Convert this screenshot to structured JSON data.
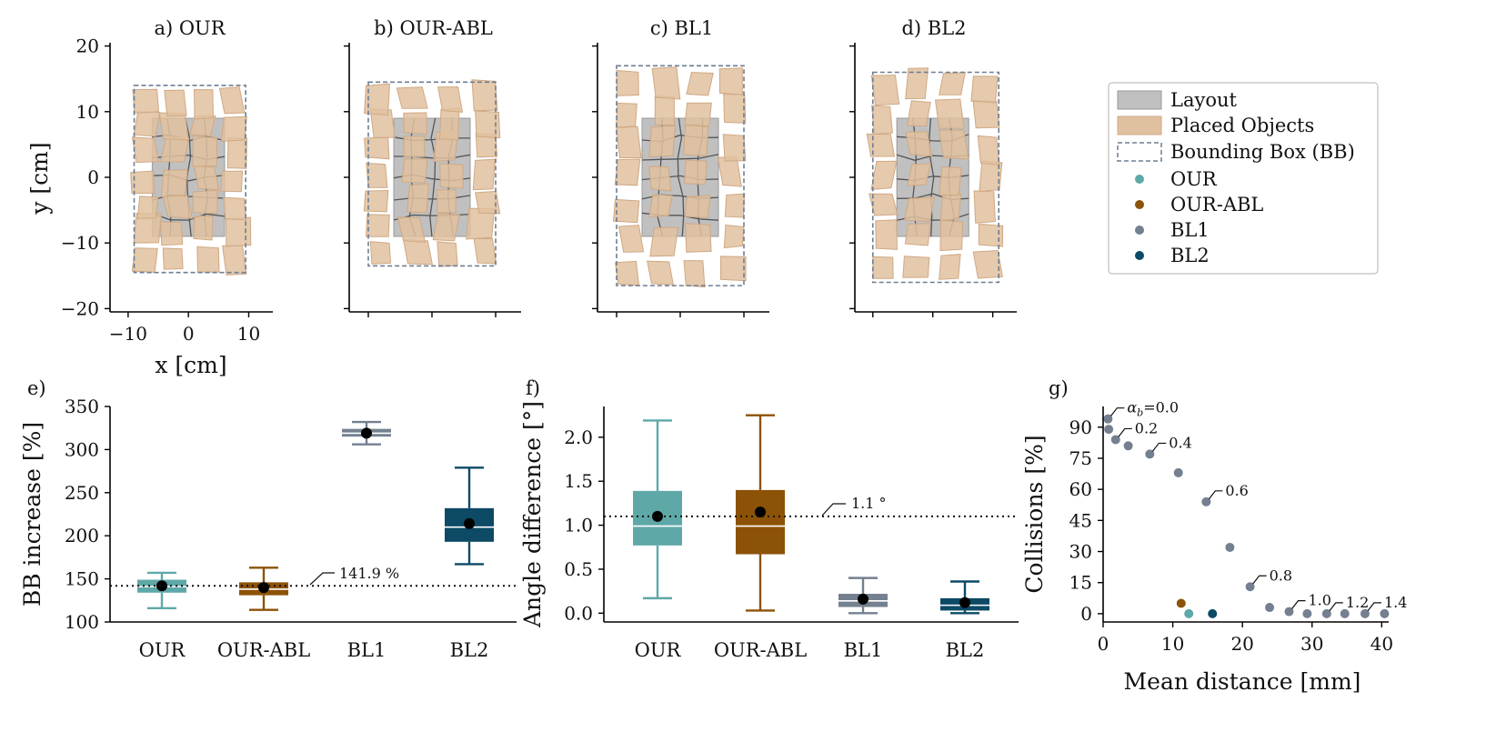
{
  "colors": {
    "OUR": "#5fa8a8",
    "OUR-ABL": "#8c5207",
    "BL1": "#748090",
    "BL2": "#0c4a66",
    "layout_fill": "#c0c0c0",
    "object_fill": "#e0c19f",
    "bb_stroke": "#6d7e93"
  },
  "legend": {
    "items": [
      "Layout",
      "Placed Objects",
      "Bounding Box (BB)",
      "OUR",
      "OUR-ABL",
      "BL1",
      "BL2"
    ]
  },
  "chart_data": [
    {
      "panel": "a",
      "type": "scatter",
      "title": "a) OUR",
      "xlabel": "x [cm]",
      "ylabel": "y [cm]",
      "xlim": [
        -13,
        14
      ],
      "ylim": [
        -20.5,
        20.5
      ],
      "xticks": [
        -10,
        0,
        10
      ],
      "yticks": [
        20,
        10,
        0,
        -10,
        -20
      ],
      "xtick_labels": [
        "−10",
        "0",
        "10"
      ],
      "ytick_labels": [
        "20",
        "10",
        "0",
        "−10",
        "−20"
      ],
      "layout_rect": [
        -6,
        6,
        -9,
        9
      ],
      "bounding_box": [
        -9,
        9.5,
        -14.5,
        14
      ]
    },
    {
      "panel": "b",
      "type": "scatter",
      "title": "b) OUR-ABL",
      "xlim": [
        -13,
        14
      ],
      "ylim": [
        -20.5,
        20.5
      ],
      "layout_rect": [
        -6,
        6,
        -9,
        9
      ],
      "bounding_box": [
        -10,
        10,
        -13.5,
        14.5
      ]
    },
    {
      "panel": "c",
      "type": "scatter",
      "title": "c) BL1",
      "xlim": [
        -13,
        14
      ],
      "ylim": [
        -20.5,
        20.5
      ],
      "layout_rect": [
        -6,
        6,
        -9,
        9
      ],
      "bounding_box": [
        -10,
        10,
        -16.5,
        17
      ]
    },
    {
      "panel": "d",
      "type": "scatter",
      "title": "d) BL2",
      "xlim": [
        -13,
        14
      ],
      "ylim": [
        -20.5,
        20.5
      ],
      "layout_rect": [
        -6,
        6,
        -9,
        9
      ],
      "bounding_box": [
        -10,
        11,
        -16,
        16
      ]
    },
    {
      "panel": "e",
      "type": "box",
      "label": "e)",
      "ylabel": "BB increase [%]",
      "ylim": [
        100,
        350
      ],
      "yticks": [
        100,
        150,
        200,
        250,
        300,
        350
      ],
      "categories": [
        "OUR",
        "OUR-ABL",
        "BL1",
        "BL2"
      ],
      "boxes": [
        {
          "name": "OUR",
          "whislo": 116,
          "q1": 134,
          "med": 141,
          "q3": 149,
          "whishi": 157,
          "mean": 141.9
        },
        {
          "name": "OUR-ABL",
          "whislo": 114,
          "q1": 131,
          "med": 138,
          "q3": 146,
          "whishi": 163,
          "mean": 140
        },
        {
          "name": "BL1",
          "whislo": 306,
          "q1": 315,
          "med": 319,
          "q3": 324,
          "whishi": 332,
          "mean": 319
        },
        {
          "name": "BL2",
          "whislo": 167,
          "q1": 193,
          "med": 210,
          "q3": 232,
          "whishi": 279,
          "mean": 214
        }
      ],
      "reference_line": 141.9,
      "reference_label": "141.9 %"
    },
    {
      "panel": "f",
      "type": "box",
      "label": "f)",
      "ylabel": "Angle difference [°]",
      "ylim": [
        -0.1,
        2.35
      ],
      "yticks": [
        0.0,
        0.5,
        1.0,
        1.5,
        2.0
      ],
      "ytick_labels": [
        "0.0",
        "0.5",
        "1.0",
        "1.5",
        "2.0"
      ],
      "categories": [
        "OUR",
        "OUR-ABL",
        "BL1",
        "BL2"
      ],
      "boxes": [
        {
          "name": "OUR",
          "whislo": 0.17,
          "q1": 0.77,
          "med": 0.99,
          "q3": 1.39,
          "whishi": 2.19,
          "mean": 1.1
        },
        {
          "name": "OUR-ABL",
          "whislo": 0.03,
          "q1": 0.67,
          "med": 0.99,
          "q3": 1.4,
          "whishi": 2.25,
          "mean": 1.15
        },
        {
          "name": "BL1",
          "whislo": 0.0,
          "q1": 0.07,
          "med": 0.14,
          "q3": 0.22,
          "whishi": 0.4,
          "mean": 0.16
        },
        {
          "name": "BL2",
          "whislo": 0.0,
          "q1": 0.03,
          "med": 0.09,
          "q3": 0.17,
          "whishi": 0.36,
          "mean": 0.12
        }
      ],
      "reference_line": 1.1,
      "reference_label": "1.1 °"
    },
    {
      "panel": "g",
      "type": "scatter",
      "label": "g)",
      "xlabel": "Mean distance [mm]",
      "ylabel": "Collisions [%]",
      "xlim": [
        0,
        41
      ],
      "ylim": [
        -4,
        100
      ],
      "xticks": [
        0,
        10,
        20,
        30,
        40
      ],
      "yticks": [
        0,
        15,
        30,
        45,
        60,
        75,
        90
      ],
      "series": [
        {
          "name": "BL1",
          "x": [
            0.7,
            0.8,
            1.8,
            3.6,
            6.7,
            10.8,
            14.8,
            18.2,
            21.1,
            23.9,
            26.7,
            29.3,
            32.1,
            34.7,
            37.6,
            40.4
          ],
          "y": [
            94,
            89,
            84,
            81,
            77,
            68,
            54,
            32,
            13,
            3,
            1,
            0,
            0,
            0,
            0,
            0
          ]
        },
        {
          "name": "OUR",
          "x": [
            12.3
          ],
          "y": [
            0
          ]
        },
        {
          "name": "OUR-ABL",
          "x": [
            11.2
          ],
          "y": [
            5
          ]
        },
        {
          "name": "BL2",
          "x": [
            15.7
          ],
          "y": [
            0
          ]
        }
      ],
      "annotations": [
        {
          "label": "α_b=0.0",
          "x": 0.7,
          "y": 94
        },
        {
          "label": "0.2",
          "x": 1.8,
          "y": 84
        },
        {
          "label": "0.4",
          "x": 6.7,
          "y": 77
        },
        {
          "label": "0.6",
          "x": 14.8,
          "y": 54
        },
        {
          "label": "0.8",
          "x": 21.1,
          "y": 13
        },
        {
          "label": "1.0",
          "x": 26.7,
          "y": 1
        },
        {
          "label": "1.2",
          "x": 32.1,
          "y": 0
        },
        {
          "label": "1.4",
          "x": 37.6,
          "y": 0
        }
      ]
    }
  ]
}
